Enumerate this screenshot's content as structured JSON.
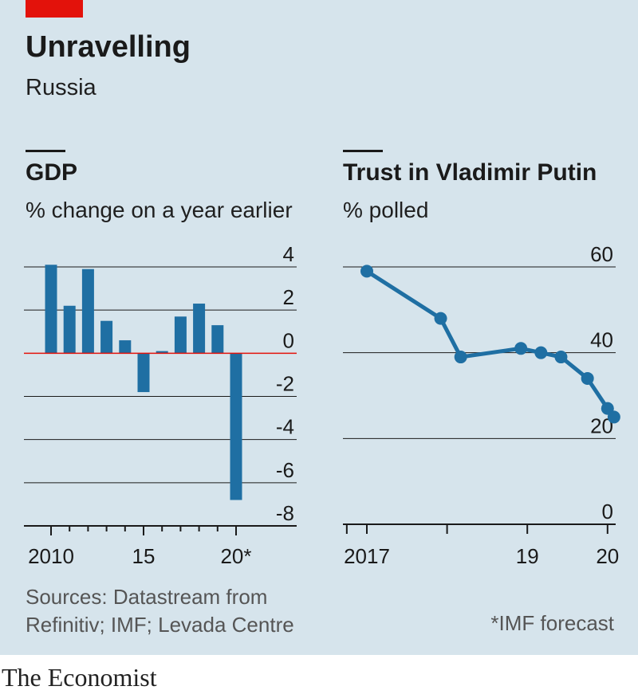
{
  "header": {
    "title": "Unravelling",
    "subtitle": "Russia"
  },
  "colors": {
    "background": "#d6e4ec",
    "accent": "#e3120b",
    "series": "#1f6fa3",
    "grid": "#1a1a1a"
  },
  "chart_data": [
    {
      "type": "bar",
      "title": "GDP",
      "subtitle": "% change on a year earlier",
      "categories": [
        "2010",
        "2011",
        "2012",
        "2013",
        "2014",
        "2015",
        "2016",
        "2017",
        "2018",
        "2019",
        "2020*"
      ],
      "x_tick_labels": [
        {
          "category": "2010",
          "label": "2010"
        },
        {
          "category": "2015",
          "label": "15"
        },
        {
          "category": "2020*",
          "label": "20*"
        }
      ],
      "values": [
        4.1,
        2.2,
        3.9,
        1.5,
        0.6,
        -1.8,
        0.1,
        1.7,
        2.3,
        1.3,
        -6.8
      ],
      "ylim": [
        -8,
        4
      ],
      "y_ticks": [
        4,
        2,
        0,
        -2,
        -4,
        -6,
        -8
      ],
      "y_tick_labels": [
        "4",
        "2",
        "0",
        "-2",
        "-4",
        "-6",
        "-8"
      ],
      "xlabel": "",
      "ylabel": "",
      "zero_line": true,
      "grid": true
    },
    {
      "type": "line",
      "title": "Trust in Vladimir Putin",
      "subtitle": "% polled",
      "x": [
        2017.0,
        2017.92,
        2018.17,
        2018.92,
        2019.17,
        2019.42,
        2019.75,
        2020.0,
        2020.08
      ],
      "values": [
        59,
        48,
        39,
        41,
        40,
        39,
        34,
        27,
        25
      ],
      "ylim": [
        0,
        60
      ],
      "y_ticks": [
        60,
        40,
        20,
        0
      ],
      "y_tick_labels": [
        "60",
        "40",
        "20",
        "0"
      ],
      "x_tick_labels": [
        {
          "x": 2017,
          "label": "2017"
        },
        {
          "x": 2019,
          "label": "19"
        },
        {
          "x": 2020,
          "label": "20"
        }
      ],
      "xlabel": "",
      "ylabel": "",
      "grid": true
    }
  ],
  "footer": {
    "sources": "Sources: Datastream from Refinitiv; IMF; Levada Centre",
    "footnote": "*IMF forecast",
    "brand": "The Economist"
  }
}
